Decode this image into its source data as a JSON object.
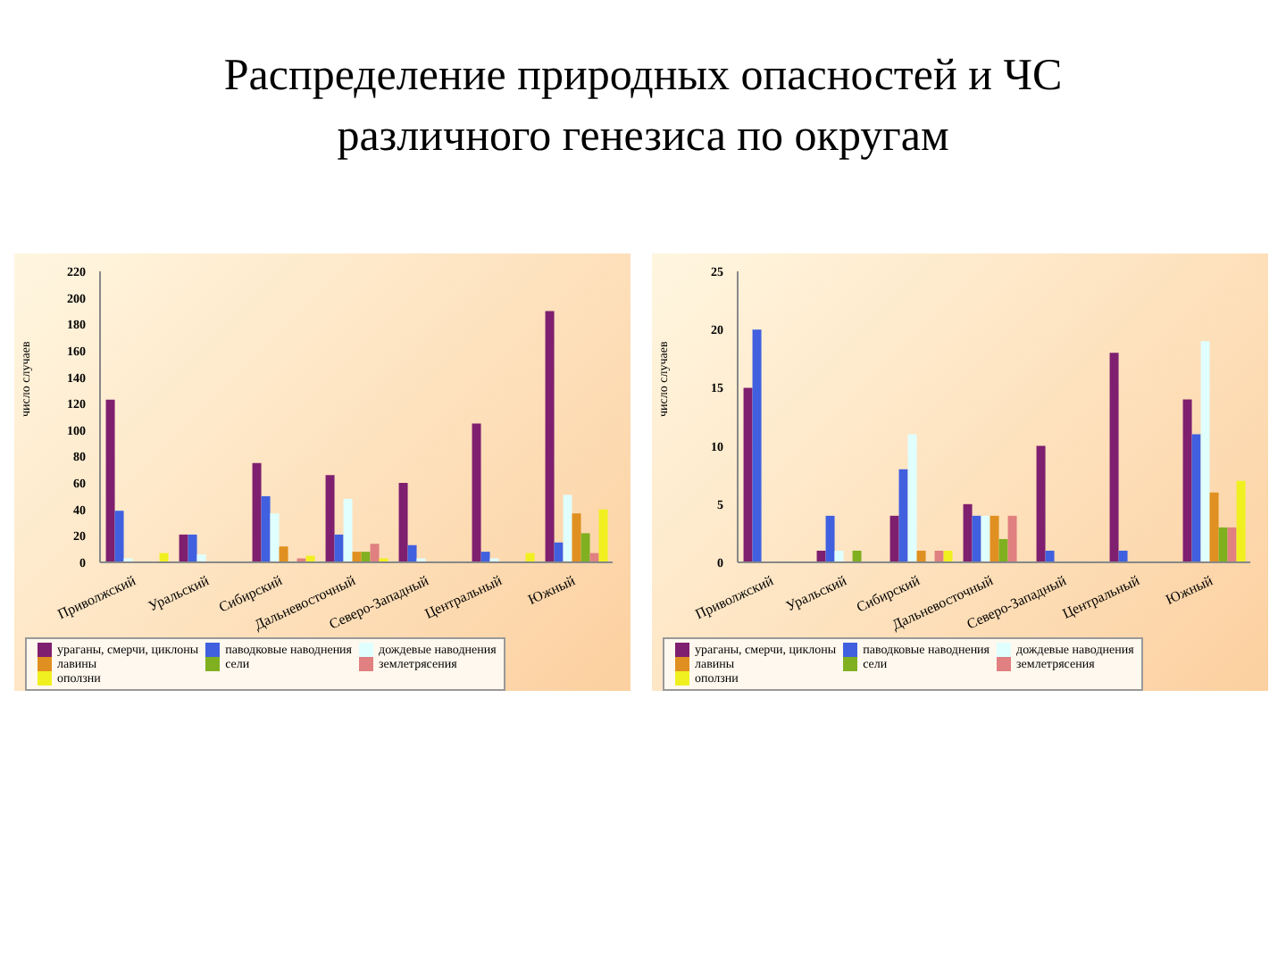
{
  "chart_data": [
    {
      "type": "bar",
      "title": "Распределение природных опасностей и ЧС  различного генезиса по округам",
      "ylabel": "число случаев",
      "categories": [
        "Приволжский",
        "Уральский",
        "Сибирский",
        "Дальневосточный",
        "Северо-Западный",
        "Центральный",
        "Южный"
      ],
      "ylim": [
        0,
        220
      ],
      "yticks": [
        0,
        20,
        40,
        60,
        80,
        100,
        120,
        140,
        160,
        180,
        200,
        220
      ],
      "legend": "bottom",
      "series": [
        {
          "name": "ураганы, смерчи, циклоны",
          "color": "#7f1f6f",
          "values": [
            123,
            21,
            75,
            66,
            60,
            105,
            190
          ]
        },
        {
          "name": "паводковые наводнения",
          "color": "#4060e0",
          "values": [
            39,
            21,
            50,
            21,
            13,
            8,
            15
          ]
        },
        {
          "name": "дождевые наводнения",
          "color": "#e0ffff",
          "values": [
            3,
            6,
            37,
            48,
            3,
            3,
            51
          ]
        },
        {
          "name": "лавины",
          "color": "#e09020",
          "values": [
            0,
            null,
            12,
            8,
            0,
            null,
            37
          ]
        },
        {
          "name": "сели",
          "color": "#80b020",
          "values": [
            null,
            null,
            null,
            8,
            null,
            null,
            22
          ]
        },
        {
          "name": "землетрясения",
          "color": "#e08080",
          "values": [
            null,
            0,
            3,
            14,
            null,
            null,
            7
          ]
        },
        {
          "name": "оползни",
          "color": "#f0f020",
          "values": [
            7,
            null,
            5,
            3,
            null,
            7,
            40
          ]
        }
      ]
    },
    {
      "type": "bar",
      "ylabel": "число случаев",
      "categories": [
        "Приволжский",
        "Уральский",
        "Сибирский",
        "Дальневосточный",
        "Северо-Западный",
        "Центральный",
        "Южный"
      ],
      "ylim": [
        0,
        25
      ],
      "yticks": [
        0,
        5,
        10,
        15,
        20,
        25
      ],
      "legend": "bottom",
      "series": [
        {
          "name": "ураганы, смерчи, циклоны",
          "color": "#7f1f6f",
          "values": [
            15,
            1,
            4,
            5,
            10,
            18,
            14
          ]
        },
        {
          "name": "паводковые наводнения",
          "color": "#4060e0",
          "values": [
            20,
            4,
            8,
            4,
            1,
            1,
            11
          ]
        },
        {
          "name": "дождевые наводнения",
          "color": "#e0ffff",
          "values": [
            null,
            1,
            11,
            4,
            null,
            null,
            19
          ]
        },
        {
          "name": "лавины",
          "color": "#e09020",
          "values": [
            null,
            null,
            1,
            4,
            null,
            null,
            6
          ]
        },
        {
          "name": "сели",
          "color": "#80b020",
          "values": [
            null,
            1,
            null,
            2,
            null,
            null,
            3
          ]
        },
        {
          "name": "землетрясения",
          "color": "#e08080",
          "values": [
            null,
            null,
            1,
            4,
            null,
            null,
            3
          ]
        },
        {
          "name": "оползни",
          "color": "#f0f020",
          "values": [
            null,
            null,
            1,
            null,
            null,
            null,
            7
          ]
        }
      ]
    }
  ]
}
